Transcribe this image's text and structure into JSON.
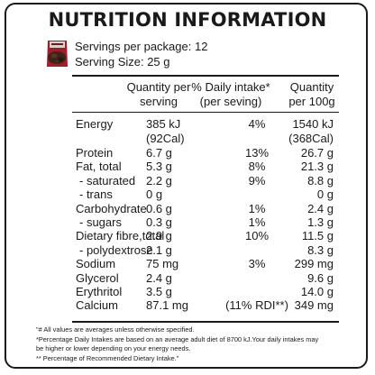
{
  "title": "NUTRITION INFORMATION",
  "servings": {
    "per_package": "Servings per package: 12",
    "size": "Serving Size: 25 g"
  },
  "headers": {
    "per_serving_l1": "Quantity per",
    "per_serving_l2": "serving",
    "daily_l1": "% Daily  intake*",
    "daily_l2": "(per seving)",
    "per100_l1": "Quantity",
    "per100_l2": "per 100g"
  },
  "rows": [
    {
      "label": "Energy",
      "serve": "385 kJ",
      "pct": "4%",
      "per100": "1540 kJ"
    },
    {
      "label": "",
      "serve": "(92Cal)",
      "pct": "",
      "per100": "(368Cal)"
    },
    {
      "label": "Protein",
      "serve": "6.7 g",
      "pct": "13%",
      "per100": "26.7 g"
    },
    {
      "label": "Fat, total",
      "serve": "5.3 g",
      "pct": "8%",
      "per100": "21.3 g"
    },
    {
      "label": " - saturated",
      "serve": "2.2 g",
      "pct": "9%",
      "per100": "8.8 g"
    },
    {
      "label": " - trans",
      "serve": "0 g",
      "pct": "",
      "per100": "0 g"
    },
    {
      "label": "Carbohydrate",
      "serve": "0.6 g",
      "pct": "1%",
      "per100": "2.4 g"
    },
    {
      "label": " - sugars",
      "serve": "0.3 g",
      "pct": "1%",
      "per100": "1.3 g"
    },
    {
      "label": "Dietary fibre,total",
      "serve": "2.9 g",
      "pct": "10%",
      "per100": "11.5 g"
    },
    {
      "label": " - polydextrose",
      "serve": "2.1 g",
      "pct": "",
      "per100": "8.3 g"
    },
    {
      "label": "Sodium",
      "serve": "75 mg",
      "pct": "3%",
      "per100": "299 mg"
    },
    {
      "label": "Glycerol",
      "serve": "2.4 g",
      "pct": "",
      "per100": "9.6 g"
    },
    {
      "label": "Erythritol",
      "serve": "3.5 g",
      "pct": "",
      "per100": "14.0 g"
    },
    {
      "label": "Calcium",
      "serve": "87.1 mg",
      "pct": "(11% RDI**)",
      "per100": "349 mg"
    }
  ],
  "footnotes": [
    "\"# All values are averages unless otherwise specified.",
    "*Percentage Daily Intakes are based on an average adult diet of 8700 kJ.Your daily intakes may",
    "be higher or lower depending on your energy needs.",
    "** Percentage of Recommended Dietary Intake.\""
  ]
}
